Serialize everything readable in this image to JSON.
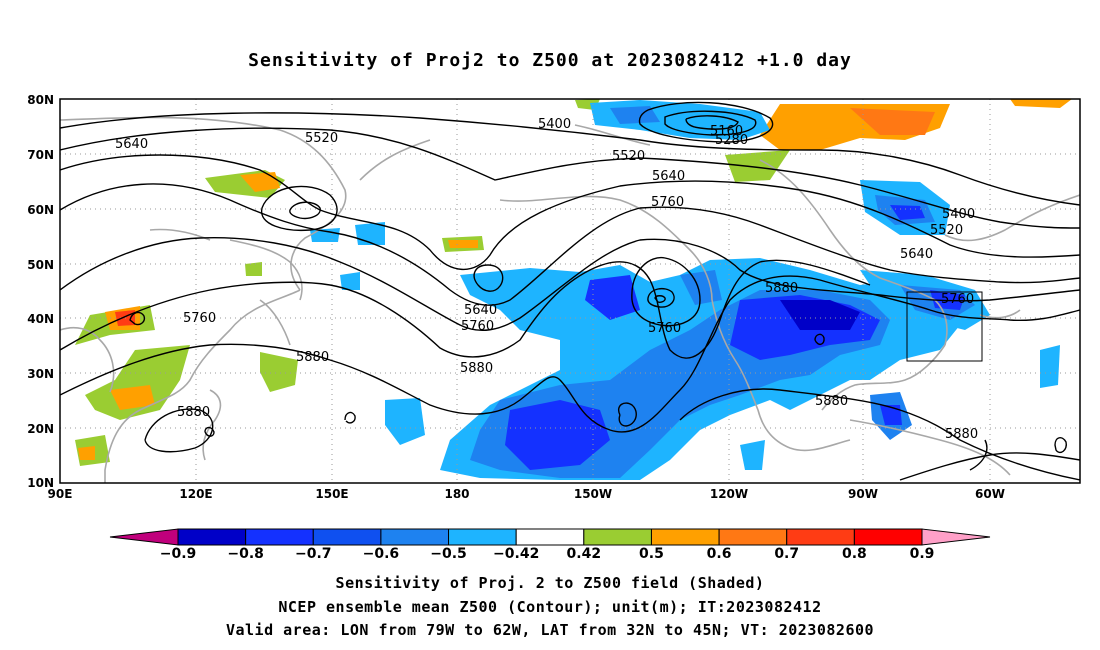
{
  "title": "Sensitivity of Proj2 to Z500 at 2023082412 +1.0 day",
  "lat_labels": [
    "80N",
    "70N",
    "60N",
    "50N",
    "40N",
    "30N",
    "20N",
    "10N"
  ],
  "lon_labels": [
    "90E",
    "120E",
    "150E",
    "180",
    "150W",
    "120W",
    "90W",
    "60W"
  ],
  "colorbar": {
    "labels": [
      "−0.9",
      "−0.8",
      "−0.7",
      "−0.6",
      "−0.5",
      "−0.42",
      "0.42",
      "0.5",
      "0.6",
      "0.7",
      "0.8",
      "0.9"
    ],
    "colors": [
      "#c0007c",
      "#0000c8",
      "#1431ff",
      "#0f50f0",
      "#1e82f0",
      "#1eb4ff",
      "#ffffff",
      "#9acd32",
      "#ffa000",
      "#ff7814",
      "#ff3c14",
      "#ff0000",
      "#ffa0c8"
    ]
  },
  "contour_labels": [
    "5640",
    "5520",
    "5400",
    "5160",
    "5280",
    "5520",
    "5640",
    "5760",
    "5400",
    "5520",
    "5640",
    "5760",
    "5880",
    "5640",
    "5760",
    "5760",
    "5880",
    "5760",
    "5880",
    "5880",
    "5880",
    "5880"
  ],
  "captions": [
    "Sensitivity of Proj. 2 to Z500 field (Shaded)",
    "NCEP ensemble mean Z500 (Contour); unit(m); IT:2023082412",
    "Valid area: LON from 79W to 62W, LAT from 32N to 45N; VT: 2023082600"
  ]
}
